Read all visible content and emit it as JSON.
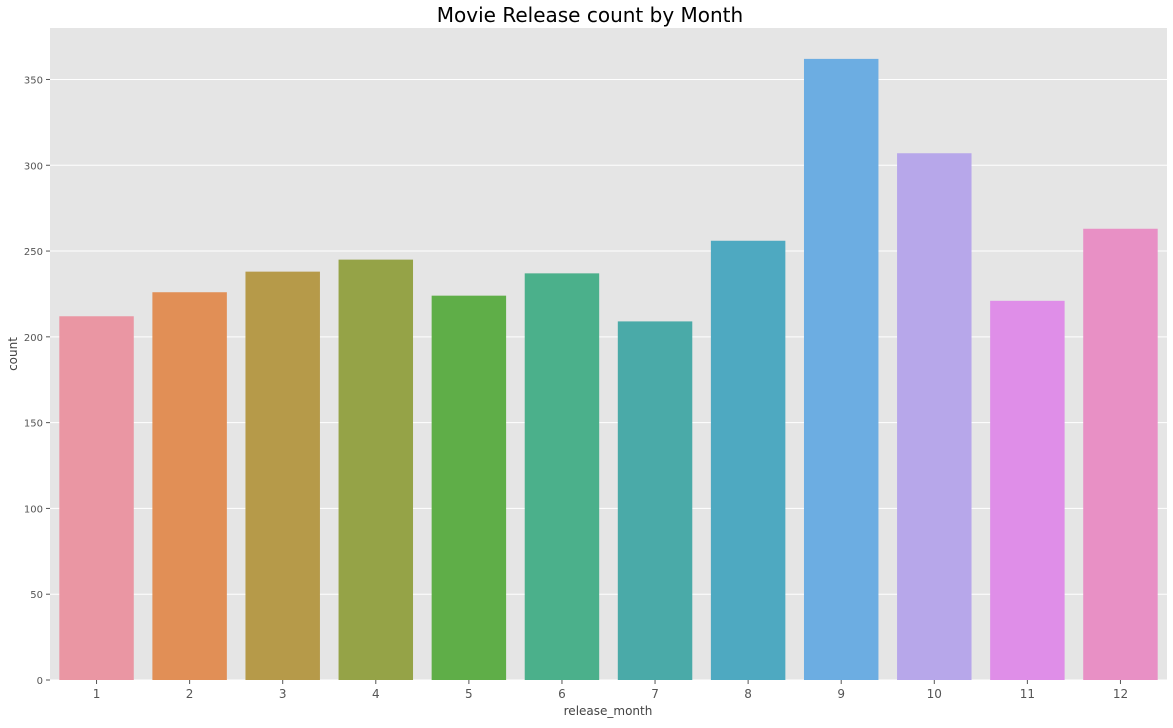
{
  "chart_data": {
    "type": "bar",
    "title": "Movie Release count by Month",
    "xlabel": "release_month",
    "ylabel": "count",
    "categories": [
      "1",
      "2",
      "3",
      "4",
      "5",
      "6",
      "7",
      "8",
      "9",
      "10",
      "11",
      "12"
    ],
    "values": [
      212,
      226,
      238,
      245,
      224,
      237,
      209,
      256,
      362,
      307,
      221,
      263
    ],
    "colors": [
      "#ea96a3",
      "#e18f56",
      "#b69a49",
      "#95a347",
      "#5fae48",
      "#4bb08b",
      "#4aaaa8",
      "#4ea9c1",
      "#6cade2",
      "#b7a7ea",
      "#df8ee8",
      "#e890c5"
    ],
    "yticks": [
      0,
      50,
      100,
      150,
      200,
      250,
      300,
      350
    ],
    "ylim": [
      0,
      380
    ],
    "grid": true,
    "background": "#e5e5e5",
    "grid_color": "#ffffff"
  }
}
